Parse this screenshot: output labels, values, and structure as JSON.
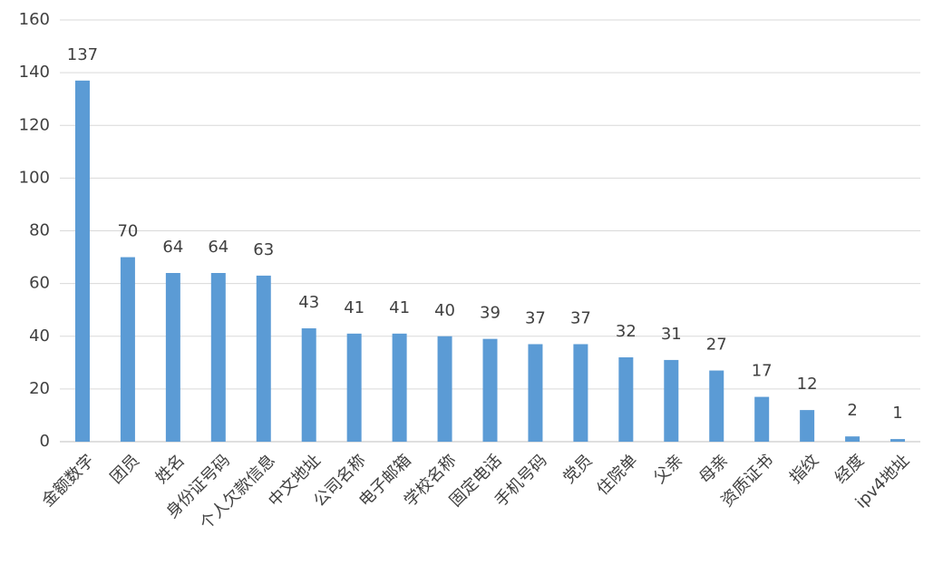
{
  "chart_data": {
    "type": "bar",
    "categories": [
      "金额数字",
      "团员",
      "姓名",
      "身份证号码",
      "个人欠款信息",
      "中文地址",
      "公司名称",
      "电子邮箱",
      "学校名称",
      "固定电话",
      "手机号码",
      "党员",
      "住院单",
      "父亲",
      "母亲",
      "资质证书",
      "指纹",
      "经度",
      "ipv4地址"
    ],
    "values": [
      137,
      70,
      64,
      64,
      63,
      43,
      41,
      41,
      40,
      39,
      37,
      37,
      32,
      31,
      27,
      17,
      12,
      2,
      1
    ],
    "color": "#5b9bd5",
    "ylim": [
      0,
      160
    ],
    "yticks": [
      0,
      20,
      40,
      60,
      80,
      100,
      120,
      140,
      160
    ],
    "grid": true
  }
}
